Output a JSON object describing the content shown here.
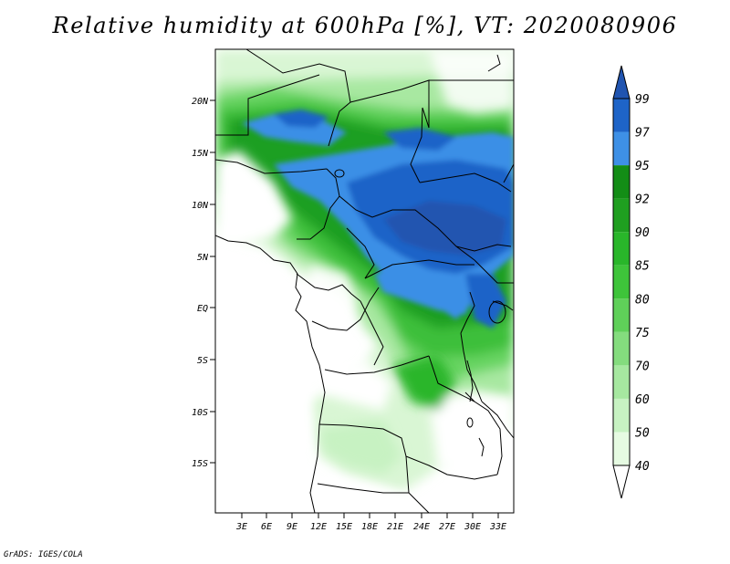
{
  "title": "Relative humidity at 600hPa [%], VT: 2020080906",
  "credit": "GrADS: IGES/COLA",
  "map": {
    "lat_labels": [
      "20N",
      "15N",
      "10N",
      "5N",
      "EQ",
      "5S",
      "10S",
      "15S"
    ],
    "lon_labels": [
      "3E",
      "6E",
      "9E",
      "12E",
      "15E",
      "18E",
      "21E",
      "24E",
      "27E",
      "30E",
      "33E"
    ]
  },
  "colorbar": {
    "levels": [
      "40",
      "50",
      "60",
      "70",
      "75",
      "80",
      "85",
      "90",
      "92",
      "95",
      "97",
      "99"
    ],
    "colors": [
      "#ffffff",
      "#e6fbe2",
      "#c7f2c2",
      "#a6e8a0",
      "#84dc7e",
      "#5fd059",
      "#3ec43a",
      "#29b62a",
      "#1f9f20",
      "#138d16",
      "#3e90e6",
      "#1e64c8",
      "#2054b0"
    ],
    "scheme": "white-green-blue"
  }
}
